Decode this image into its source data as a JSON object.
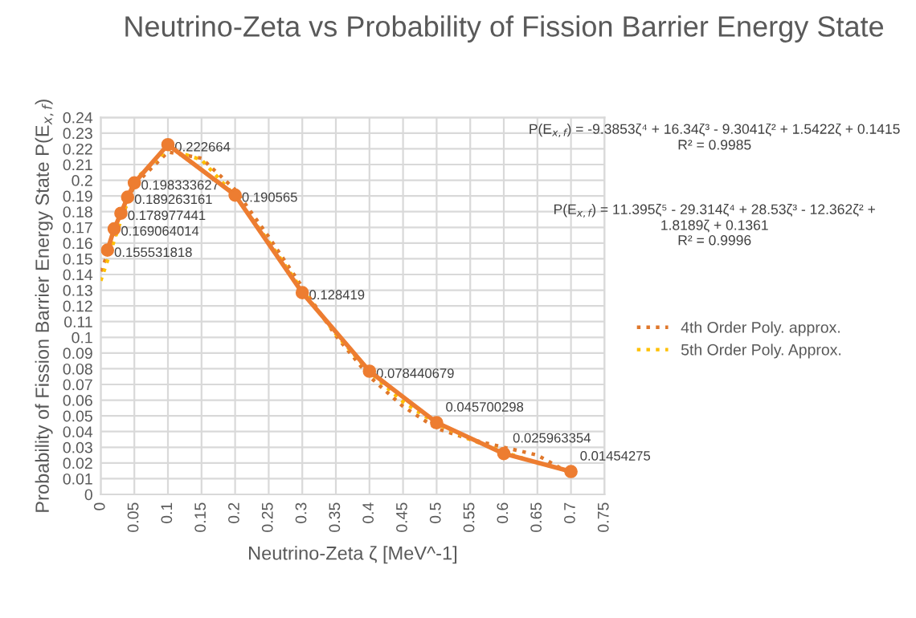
{
  "chart_data": {
    "type": "line",
    "title": "Neutrino-Zeta vs Probability of Fission Barrier Energy State",
    "xlabel": "Neutrino-Zeta ζ [MeV^-1]",
    "ylabel": "Probability of Fission Barrier Energy State P(E$_{x,f}$)",
    "xlim": [
      0,
      0.75
    ],
    "ylim": [
      0,
      0.24
    ],
    "xticks": [
      0,
      0.05,
      0.1,
      0.15,
      0.2,
      0.25,
      0.3,
      0.35,
      0.4,
      0.45,
      0.5,
      0.55,
      0.6,
      0.65,
      0.7,
      0.75
    ],
    "yticks": [
      0,
      0.01,
      0.02,
      0.03,
      0.04,
      0.05,
      0.06,
      0.07,
      0.08,
      0.09,
      0.1,
      0.11,
      0.12,
      0.13,
      0.14,
      0.15,
      0.16,
      0.17,
      0.18,
      0.19,
      0.2,
      0.21,
      0.22,
      0.23,
      0.24
    ],
    "grid": true,
    "legend": "right",
    "series": [
      {
        "color": "#ed7d31",
        "marker": "circle",
        "line_style": "solid",
        "x": [
          0.01,
          0.02,
          0.03,
          0.04,
          0.05,
          0.1,
          0.2,
          0.3,
          0.4,
          0.5,
          0.6,
          0.7
        ],
        "values": [
          0.155531818,
          0.169064014,
          0.178977441,
          0.189263161,
          0.198333627,
          0.222664,
          0.190565,
          0.128419,
          0.078440679,
          0.045700298,
          0.025963354,
          0.01454275
        ],
        "value_labels": [
          "0.155531818",
          "0.169064014",
          "0.178977441",
          "0.189263161",
          "0.198333627",
          "0.222664",
          "0.190565",
          "0.128419",
          "0.078440679",
          "0.045700298",
          "0.025963354",
          "0.01454275"
        ]
      },
      {
        "name": "4th Order Poly. approx.",
        "color": "#e0782c",
        "marker": "none",
        "line_style": "dotted",
        "x": [
          0,
          0.05,
          0.1,
          0.15,
          0.2,
          0.25,
          0.3,
          0.35,
          0.4,
          0.45,
          0.5,
          0.55,
          0.6,
          0.65,
          0.7
        ],
        "values": [
          0.142,
          0.197,
          0.218,
          0.214,
          0.194,
          0.164,
          0.132,
          0.101,
          0.075,
          0.056,
          0.042,
          0.035,
          0.03,
          0.025,
          0.013
        ]
      },
      {
        "name": "5th Order Poly. Approx.",
        "color": "#ffc000",
        "marker": "none",
        "line_style": "dotted",
        "x": [
          0,
          0.05,
          0.1,
          0.15,
          0.2,
          0.25,
          0.3,
          0.35,
          0.4,
          0.45,
          0.5,
          0.55,
          0.6,
          0.65,
          0.7
        ],
        "values": [
          0.136,
          0.2,
          0.22,
          0.213,
          0.19,
          0.161,
          0.13,
          0.102,
          0.078,
          0.059,
          0.045,
          0.035,
          0.027,
          0.02,
          0.015
        ]
      }
    ],
    "annotations": [
      "P(E$_{x,f}$) = -9.3853ζ⁴ + 16.34ζ³ - 9.3041ζ² + 1.5422ζ + 0.1415\nR² = 0.9985",
      "P(E$_{x,f}$) = 11.395ζ⁵ - 29.314ζ⁴ + 28.53ζ³ - 12.362ζ² +\n1.8189ζ + 0.1361\nR² = 0.9996"
    ]
  }
}
